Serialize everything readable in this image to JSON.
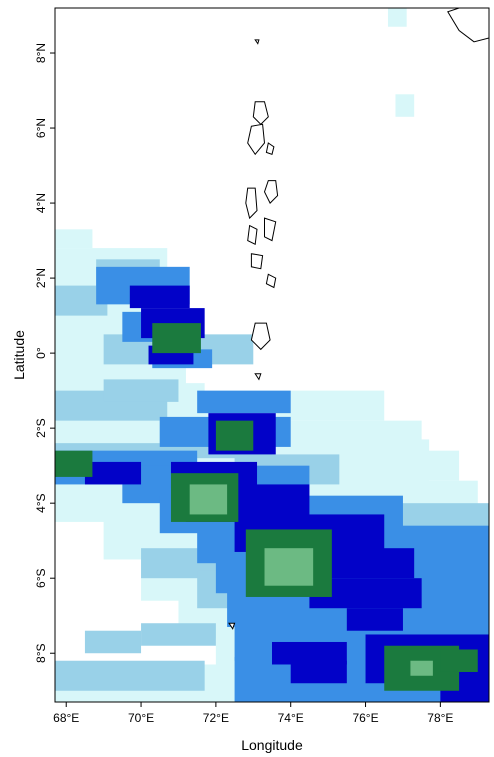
{
  "map": {
    "axes": {
      "xlabel": "Longitude",
      "ylabel": "Latitude",
      "xlim": [
        67.7,
        79.3
      ],
      "ylim": [
        -9.3,
        9.2
      ],
      "xticks": [
        {
          "value": 68,
          "label": "68°E"
        },
        {
          "value": 70,
          "label": "70°E"
        },
        {
          "value": 72,
          "label": "72°E"
        },
        {
          "value": 74,
          "label": "74°E"
        },
        {
          "value": 76,
          "label": "76°E"
        },
        {
          "value": 78,
          "label": "78°E"
        }
      ],
      "yticks": [
        {
          "value": 8,
          "label": "8°N"
        },
        {
          "value": 6,
          "label": "6°N"
        },
        {
          "value": 4,
          "label": "4°N"
        },
        {
          "value": 2,
          "label": "2°N"
        },
        {
          "value": 0,
          "label": "0°"
        },
        {
          "value": -2,
          "label": "2°S"
        },
        {
          "value": -4,
          "label": "4°S"
        },
        {
          "value": -6,
          "label": "6°S"
        },
        {
          "value": -8,
          "label": "8°S"
        }
      ]
    },
    "colors": {
      "level1": "#d8f7f9",
      "level2": "#99d1e8",
      "level3": "#3a8fe6",
      "level4": "#0202c8",
      "level5": "#1b7a3e",
      "level6": "#6cba83",
      "coast": "#000000"
    },
    "field": {
      "cell_deg": 0.3,
      "regions": [
        {
          "level": 1,
          "cells": [
            [
              67.7,
              2.8,
              1.0,
              0.5
            ],
            [
              67.7,
              1.5,
              3.0,
              1.3
            ],
            [
              67.7,
              -1.0,
              3.5,
              2.8
            ],
            [
              67.7,
              -2.4,
              4.0,
              1.6
            ],
            [
              67.7,
              -4.5,
              10.0,
              2.2
            ],
            [
              69.0,
              -5.5,
              10.3,
              1.2
            ],
            [
              70.0,
              -6.6,
              9.3,
              1.3
            ],
            [
              71.0,
              -7.6,
              8.3,
              1.3
            ],
            [
              72.0,
              -8.6,
              7.3,
              1.3
            ],
            [
              67.7,
              -9.3,
              11.6,
              1.0
            ],
            [
              71.0,
              -1.8,
              5.5,
              0.8
            ],
            [
              73.0,
              -2.6,
              4.5,
              0.8
            ],
            [
              75.0,
              -3.4,
              3.5,
              0.8
            ],
            [
              76.5,
              -4.2,
              2.5,
              0.8
            ],
            [
              76.6,
              8.7,
              0.5,
              0.6
            ],
            [
              76.8,
              6.3,
              0.5,
              0.6
            ]
          ]
        },
        {
          "level": 2,
          "cells": [
            [
              67.7,
              1.0,
              1.4,
              0.8
            ],
            [
              68.8,
              1.7,
              1.7,
              0.8
            ],
            [
              69.0,
              -0.3,
              4.0,
              0.8
            ],
            [
              67.7,
              -1.8,
              3.0,
              0.8
            ],
            [
              69.0,
              -1.3,
              2.0,
              0.6
            ],
            [
              67.7,
              -3.0,
              3.0,
              0.6
            ],
            [
              70.5,
              -2.8,
              3.0,
              1.0
            ],
            [
              72.5,
              -3.5,
              2.8,
              0.8
            ],
            [
              70.0,
              -6.0,
              3.0,
              0.8
            ],
            [
              71.5,
              -6.8,
              4.0,
              1.0
            ],
            [
              72.5,
              -6.0,
              6.8,
              2.0
            ],
            [
              68.5,
              -8.0,
              1.5,
              0.6
            ],
            [
              67.7,
              -9.0,
              4.0,
              0.8
            ],
            [
              70.0,
              -7.8,
              2.0,
              0.6
            ],
            [
              73.5,
              -7.2,
              3.0,
              0.6
            ]
          ]
        },
        {
          "level": 3,
          "cells": [
            [
              68.8,
              1.3,
              2.5,
              1.0
            ],
            [
              69.5,
              0.3,
              2.0,
              0.8
            ],
            [
              70.3,
              -0.4,
              1.6,
              0.5
            ],
            [
              70.5,
              -2.5,
              3.5,
              0.8
            ],
            [
              71.5,
              -1.6,
              2.5,
              0.6
            ],
            [
              67.7,
              -3.5,
              3.8,
              0.9
            ],
            [
              69.5,
              -4.0,
              5.0,
              1.0
            ],
            [
              70.5,
              -4.8,
              6.5,
              1.0
            ],
            [
              71.5,
              -5.6,
              8.0,
              1.0
            ],
            [
              72.0,
              -6.4,
              7.3,
              1.0
            ],
            [
              72.3,
              -7.3,
              7.0,
              1.0
            ],
            [
              72.5,
              -8.2,
              6.8,
              1.0
            ],
            [
              72.5,
              -9.3,
              6.8,
              1.2
            ]
          ]
        },
        {
          "level": 4,
          "cells": [
            [
              69.7,
              1.2,
              1.6,
              0.6
            ],
            [
              70.0,
              0.4,
              1.7,
              0.8
            ],
            [
              70.2,
              -0.3,
              1.2,
              0.5
            ],
            [
              71.8,
              -2.7,
              1.8,
              1.1
            ],
            [
              70.8,
              -3.6,
              2.3,
              0.7
            ],
            [
              68.5,
              -3.5,
              1.5,
              0.6
            ],
            [
              71.2,
              -4.5,
              3.3,
              1.0
            ],
            [
              72.5,
              -5.3,
              4.0,
              1.0
            ],
            [
              73.0,
              -6.0,
              4.3,
              0.8
            ],
            [
              74.5,
              -6.8,
              3.0,
              0.8
            ],
            [
              75.5,
              -7.4,
              1.5,
              0.6
            ],
            [
              73.5,
              -8.3,
              2.0,
              0.6
            ],
            [
              74.0,
              -8.8,
              1.5,
              0.6
            ],
            [
              76.0,
              -8.8,
              3.3,
              1.3
            ],
            [
              78.0,
              -9.3,
              1.3,
              0.7
            ]
          ]
        },
        {
          "level": 5,
          "cells": [
            [
              70.3,
              0.0,
              1.3,
              0.8
            ],
            [
              67.7,
              -3.3,
              1.0,
              0.7
            ],
            [
              72.0,
              -2.6,
              1.0,
              0.8
            ],
            [
              70.8,
              -4.5,
              1.8,
              1.3
            ],
            [
              72.8,
              -6.5,
              2.3,
              1.8
            ],
            [
              76.5,
              -9.0,
              2.0,
              1.2
            ],
            [
              78.0,
              -8.5,
              1.0,
              0.6
            ]
          ]
        },
        {
          "level": 6,
          "cells": [
            [
              71.3,
              -4.3,
              1.0,
              0.8
            ],
            [
              73.3,
              -6.2,
              1.3,
              1.0
            ],
            [
              77.2,
              -8.6,
              0.6,
              0.4
            ]
          ]
        }
      ]
    },
    "land": [
      {
        "name": "Sri Lanka coast",
        "coords": [
          [
            79.3,
            9.2
          ],
          [
            78.5,
            9.2
          ],
          [
            78.2,
            9.1
          ],
          [
            78.5,
            8.6
          ],
          [
            78.9,
            8.3
          ],
          [
            79.3,
            8.4
          ],
          [
            79.3,
            9.2
          ]
        ]
      },
      {
        "name": "Island 1",
        "coords": [
          [
            73.05,
            6.7
          ],
          [
            73.3,
            6.7
          ],
          [
            73.4,
            6.3
          ],
          [
            73.2,
            6.1
          ],
          [
            73.0,
            6.3
          ],
          [
            73.05,
            6.7
          ]
        ]
      },
      {
        "name": "Island 2",
        "coords": [
          [
            72.95,
            6.05
          ],
          [
            73.25,
            6.1
          ],
          [
            73.3,
            5.6
          ],
          [
            73.05,
            5.3
          ],
          [
            72.85,
            5.6
          ],
          [
            72.95,
            6.05
          ]
        ]
      },
      {
        "name": "Island 3",
        "coords": [
          [
            73.4,
            5.6
          ],
          [
            73.55,
            5.5
          ],
          [
            73.5,
            5.3
          ],
          [
            73.35,
            5.35
          ],
          [
            73.4,
            5.6
          ]
        ]
      },
      {
        "name": "Island 4",
        "coords": [
          [
            73.4,
            4.6
          ],
          [
            73.6,
            4.6
          ],
          [
            73.65,
            4.2
          ],
          [
            73.45,
            4.0
          ],
          [
            73.3,
            4.3
          ],
          [
            73.4,
            4.6
          ]
        ]
      },
      {
        "name": "Island 5",
        "coords": [
          [
            72.85,
            4.4
          ],
          [
            73.05,
            4.4
          ],
          [
            73.1,
            3.8
          ],
          [
            72.9,
            3.6
          ],
          [
            72.8,
            4.0
          ],
          [
            72.85,
            4.4
          ]
        ]
      },
      {
        "name": "Island 6",
        "coords": [
          [
            73.3,
            3.6
          ],
          [
            73.6,
            3.5
          ],
          [
            73.5,
            3.0
          ],
          [
            73.3,
            3.1
          ],
          [
            73.3,
            3.6
          ]
        ]
      },
      {
        "name": "Island 7",
        "coords": [
          [
            72.9,
            3.4
          ],
          [
            73.1,
            3.3
          ],
          [
            73.05,
            2.9
          ],
          [
            72.85,
            3.0
          ],
          [
            72.9,
            3.4
          ]
        ]
      },
      {
        "name": "Island 8",
        "coords": [
          [
            72.95,
            2.65
          ],
          [
            73.25,
            2.6
          ],
          [
            73.2,
            2.25
          ],
          [
            72.95,
            2.3
          ],
          [
            72.95,
            2.65
          ]
        ]
      },
      {
        "name": "Island 9",
        "coords": [
          [
            73.4,
            2.1
          ],
          [
            73.6,
            2.0
          ],
          [
            73.55,
            1.75
          ],
          [
            73.35,
            1.85
          ],
          [
            73.4,
            2.1
          ]
        ]
      },
      {
        "name": "Island 10",
        "coords": [
          [
            73.05,
            0.8
          ],
          [
            73.35,
            0.8
          ],
          [
            73.45,
            0.35
          ],
          [
            73.2,
            0.1
          ],
          [
            72.95,
            0.35
          ],
          [
            73.05,
            0.8
          ]
        ]
      },
      {
        "name": "Island 11",
        "coords": [
          [
            73.05,
            8.35
          ],
          [
            73.15,
            8.35
          ],
          [
            73.12,
            8.25
          ],
          [
            73.05,
            8.35
          ]
        ]
      },
      {
        "name": "Island 12",
        "coords": [
          [
            73.05,
            -0.55
          ],
          [
            73.2,
            -0.55
          ],
          [
            73.15,
            -0.7
          ],
          [
            73.05,
            -0.55
          ]
        ]
      },
      {
        "name": "Island 13",
        "coords": [
          [
            72.35,
            -7.2
          ],
          [
            72.5,
            -7.2
          ],
          [
            72.45,
            -7.35
          ],
          [
            72.35,
            -7.2
          ]
        ]
      }
    ]
  }
}
